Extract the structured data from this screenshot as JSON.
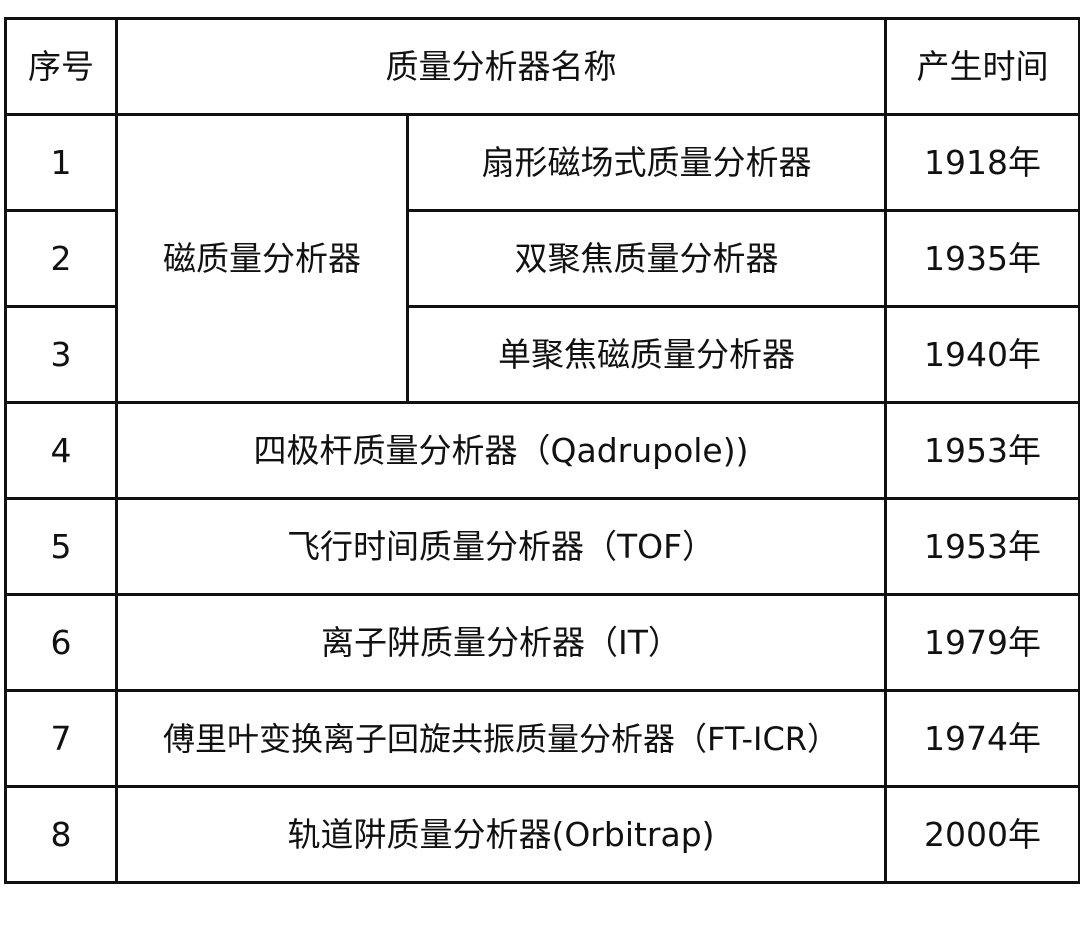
{
  "headers": {
    "index": "序号",
    "name": "质量分析器名称",
    "time": "产生时间"
  },
  "magnetic_group": "磁质量分析器",
  "rows": [
    {
      "index": "1",
      "name": "扇形磁场式质量分析器",
      "time": "1918年"
    },
    {
      "index": "2",
      "name": "双聚焦质量分析器",
      "time": "1935年"
    },
    {
      "index": "3",
      "name": "单聚焦磁质量分析器",
      "time": "1940年"
    },
    {
      "index": "4",
      "name": "四极杆质量分析器（Qadrupole))",
      "time": "1953年"
    },
    {
      "index": "5",
      "name": "飞行时间质量分析器（TOF）",
      "time": "1953年"
    },
    {
      "index": "6",
      "name": "离子阱质量分析器（IT）",
      "time": "1979年"
    },
    {
      "index": "7",
      "name": "傅里叶变换离子回旋共振质量分析器（FT-ICR）",
      "time": "1974年"
    },
    {
      "index": "8",
      "name": "轨道阱质量分析器(Orbitrap)",
      "time": "2000年"
    }
  ]
}
